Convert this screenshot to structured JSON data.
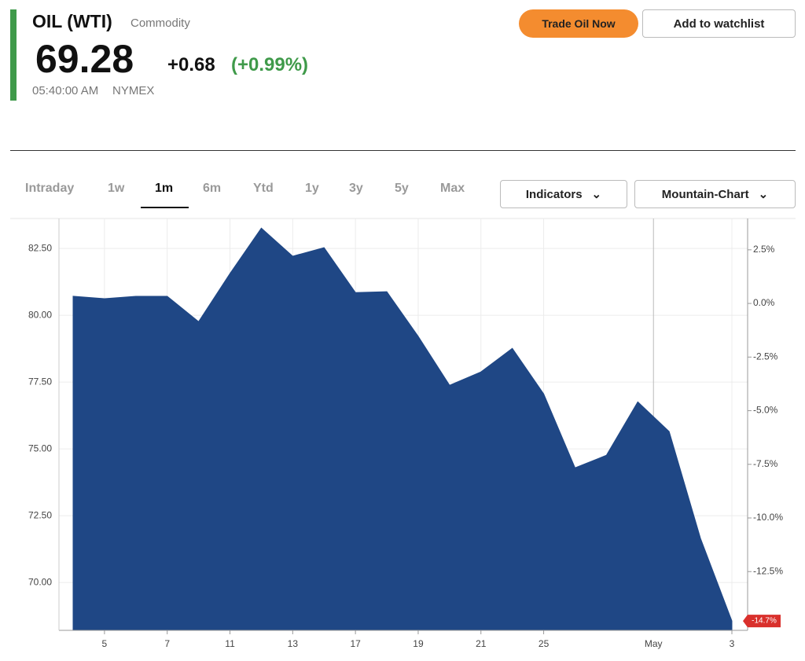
{
  "header": {
    "symbol": "OIL (WTI)",
    "kind": "Commodity",
    "price": "69.28",
    "change": "+0.68",
    "change_pct": "(+0.99%)",
    "time": "05:40:00 AM",
    "exchange": "NYMEX"
  },
  "buttons": {
    "trade": "Trade Oil Now",
    "watchlist": "Add to watchlist"
  },
  "tabs": {
    "items": [
      "Intraday",
      "1w",
      "1m",
      "6m",
      "Ytd",
      "1y",
      "3y",
      "5y",
      "Max"
    ],
    "active": 2
  },
  "dropdowns": [
    "Indicators",
    "Mountain-Chart"
  ],
  "chart_data": {
    "type": "area",
    "color": "#1f4785",
    "categories": [
      null,
      "5",
      null,
      "7",
      null,
      "11",
      null,
      "13",
      null,
      "17",
      null,
      "19",
      null,
      "21",
      null,
      "25",
      null,
      null,
      null,
      null,
      null,
      "3"
    ],
    "values": [
      80.71,
      80.62,
      80.71,
      80.71,
      79.76,
      81.56,
      83.26,
      82.21,
      82.53,
      80.85,
      80.88,
      79.21,
      77.38,
      77.88,
      78.76,
      77.06,
      74.29,
      74.76,
      76.76,
      75.65,
      71.65,
      68.56
    ],
    "month_marker": "May",
    "end_badge": "-14.7%",
    "ylim": [
      68.21,
      83.62
    ],
    "yticks": [
      {
        "value": 70,
        "label": "70.00"
      },
      {
        "value": 72.5,
        "label": "72.50"
      },
      {
        "value": 75,
        "label": "75.00"
      },
      {
        "value": 77.5,
        "label": "77.50"
      },
      {
        "value": 80,
        "label": "80.00"
      },
      {
        "value": 82.5,
        "label": "82.50"
      }
    ],
    "y2lim": [
      -15.24,
      3.96
    ],
    "y2ticks": [
      {
        "value": -12.5,
        "label": "-12.5%"
      },
      {
        "value": -10,
        "label": "-10.0%"
      },
      {
        "value": -7.5,
        "label": "-7.5%"
      },
      {
        "value": -5,
        "label": "-5.0%"
      },
      {
        "value": -2.5,
        "label": "-2.5%"
      },
      {
        "value": 0,
        "label": "0.0%"
      },
      {
        "value": 2.5,
        "label": "2.5%"
      }
    ],
    "grid": true
  }
}
